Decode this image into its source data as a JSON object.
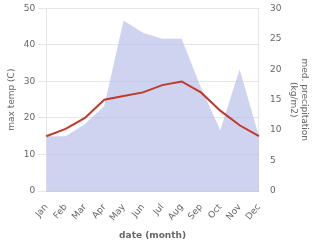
{
  "chart_data": {
    "type": "line",
    "xlabel": "date (month)",
    "ylabel": "max temp (C)",
    "y2label": "med. precipitation\n(kg/m2)",
    "categories": [
      "Jan",
      "Feb",
      "Mar",
      "Apr",
      "May",
      "Jun",
      "Jul",
      "Aug",
      "Sep",
      "Oct",
      "Nov",
      "Dec"
    ],
    "series": [
      {
        "type": "area",
        "color": "#b3bde8",
        "axis": "y2",
        "values": [
          9,
          9,
          11,
          14,
          28,
          26,
          25,
          25,
          17,
          10,
          20,
          9
        ]
      },
      {
        "type": "line",
        "color": "#c0392b",
        "values": [
          15,
          17,
          20,
          25,
          26,
          27,
          29,
          30,
          27,
          22,
          18,
          15
        ]
      }
    ],
    "ylim": [
      0,
      50
    ],
    "yticks": [
      0,
      10,
      20,
      30,
      40,
      50
    ],
    "y2lim": [
      0,
      30
    ],
    "y2ticks": [
      0,
      5,
      10,
      15,
      20,
      25,
      30
    ],
    "grid": "y",
    "legend": false
  }
}
